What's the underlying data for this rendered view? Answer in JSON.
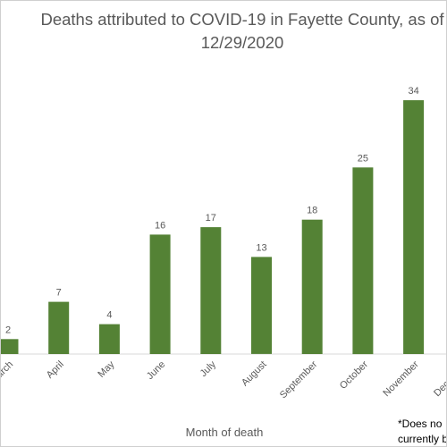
{
  "chart_data": {
    "type": "bar",
    "title_lines": [
      "Deaths attributed to COVID-19 in Fayette County, as of",
      "12/29/2020"
    ],
    "xlabel": "Month of death",
    "ylabel": "",
    "categories": [
      "March",
      "April",
      "May",
      "June",
      "July",
      "August",
      "September",
      "October",
      "November",
      "December"
    ],
    "values": [
      2,
      7,
      4,
      16,
      17,
      13,
      18,
      25,
      34,
      null
    ],
    "value_labels": [
      "2",
      "7",
      "4",
      "16",
      "17",
      "13",
      "18",
      "25",
      "34",
      ""
    ],
    "ylim": [
      0,
      36
    ],
    "grid": false,
    "bar_color": "#548235",
    "footnote_lines": [
      "*Does no",
      "currently b"
    ]
  }
}
